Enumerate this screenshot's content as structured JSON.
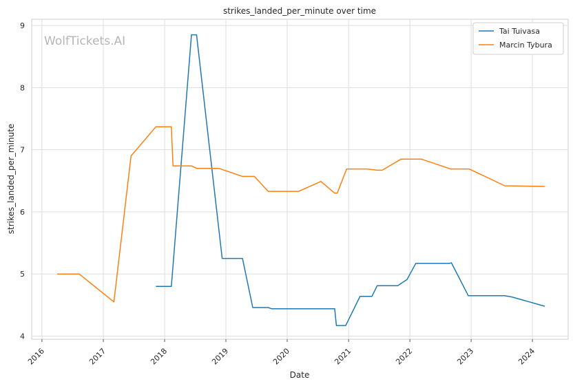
{
  "watermark": "WolfTickets.AI",
  "chart_data": {
    "type": "line",
    "title": "strikes_landed_per_minute over time",
    "xlabel": "Date",
    "ylabel": "strikes_landed_per_minute",
    "x_ticks": [
      "2016",
      "2017",
      "2018",
      "2019",
      "2020",
      "2021",
      "2022",
      "2023",
      "2024"
    ],
    "y_ticks": [
      "4",
      "5",
      "6",
      "7",
      "8",
      "9"
    ],
    "xlim": [
      "2015-11-01",
      "2024-08-01"
    ],
    "ylim": [
      3.95,
      9.1
    ],
    "grid": true,
    "legend_position": "top-right",
    "series": [
      {
        "name": "Tai Tuivasa",
        "color": "#1f77b4",
        "points": [
          [
            "2017-11-10",
            4.8
          ],
          [
            "2018-02-10",
            4.8
          ],
          [
            "2018-06-10",
            8.85
          ],
          [
            "2018-07-10",
            8.85
          ],
          [
            "2018-12-10",
            5.25
          ],
          [
            "2019-04-10",
            5.25
          ],
          [
            "2019-06-10",
            4.46
          ],
          [
            "2019-09-10",
            4.46
          ],
          [
            "2019-10-01",
            4.44
          ],
          [
            "2020-10-10",
            4.44
          ],
          [
            "2020-10-20",
            4.17
          ],
          [
            "2020-12-15",
            4.17
          ],
          [
            "2021-03-10",
            4.64
          ],
          [
            "2021-05-20",
            4.64
          ],
          [
            "2021-06-20",
            4.81
          ],
          [
            "2021-10-20",
            4.81
          ],
          [
            "2021-12-15",
            4.91
          ],
          [
            "2022-02-05",
            5.17
          ],
          [
            "2022-08-25",
            5.17
          ],
          [
            "2022-09-05",
            5.18
          ],
          [
            "2022-12-15",
            4.65
          ],
          [
            "2023-07-20",
            4.65
          ],
          [
            "2023-09-01",
            4.63
          ],
          [
            "2024-03-15",
            4.48
          ]
        ]
      },
      {
        "name": "Marcin Tybura",
        "color": "#ff7f0e",
        "points": [
          [
            "2016-04-01",
            5.0
          ],
          [
            "2016-08-10",
            5.0
          ],
          [
            "2017-03-05",
            4.55
          ],
          [
            "2017-06-15",
            6.9
          ],
          [
            "2017-11-10",
            7.37
          ],
          [
            "2018-02-10",
            7.37
          ],
          [
            "2018-02-20",
            6.74
          ],
          [
            "2018-06-10",
            6.74
          ],
          [
            "2018-07-10",
            6.7
          ],
          [
            "2018-11-20",
            6.7
          ],
          [
            "2019-04-10",
            6.57
          ],
          [
            "2019-06-20",
            6.57
          ],
          [
            "2019-09-10",
            6.33
          ],
          [
            "2020-03-10",
            6.33
          ],
          [
            "2020-07-20",
            6.49
          ],
          [
            "2020-10-10",
            6.3
          ],
          [
            "2020-10-25",
            6.3
          ],
          [
            "2020-12-20",
            6.69
          ],
          [
            "2021-04-20",
            6.69
          ],
          [
            "2021-06-20",
            6.67
          ],
          [
            "2021-07-20",
            6.67
          ],
          [
            "2021-11-10",
            6.85
          ],
          [
            "2022-03-10",
            6.85
          ],
          [
            "2022-09-01",
            6.69
          ],
          [
            "2022-12-20",
            6.69
          ],
          [
            "2023-03-01",
            6.6
          ],
          [
            "2023-07-20",
            6.42
          ],
          [
            "2024-03-15",
            6.41
          ]
        ]
      }
    ]
  }
}
